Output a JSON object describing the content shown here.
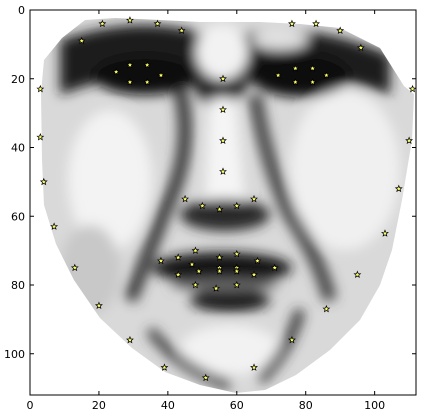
{
  "chart_data": {
    "type": "scatter",
    "title": "",
    "xlabel": "",
    "ylabel": "",
    "xlim": [
      0,
      112
    ],
    "ylim": [
      112,
      0
    ],
    "y_inverted": true,
    "grid": false,
    "legend": "none",
    "background": "grayscale face image",
    "x_ticks": [
      0,
      20,
      40,
      60,
      80,
      100
    ],
    "y_ticks": [
      0,
      20,
      40,
      60,
      80,
      100
    ],
    "x_tick_labels": [
      "0",
      "20",
      "40",
      "60",
      "80",
      "100"
    ],
    "y_tick_labels": [
      "0",
      "20",
      "40",
      "60",
      "80",
      "100"
    ],
    "marker": "star",
    "marker_color": "#ffff66",
    "series": [
      {
        "points": [
          [
            3,
            23
          ],
          [
            3,
            37
          ],
          [
            4,
            50
          ],
          [
            7,
            63
          ],
          [
            13,
            75
          ],
          [
            20,
            86
          ],
          [
            29,
            96
          ],
          [
            39,
            104
          ],
          [
            51,
            107
          ],
          [
            65,
            104
          ],
          [
            76,
            96
          ],
          [
            86,
            87
          ],
          [
            95,
            77
          ],
          [
            103,
            65
          ],
          [
            107,
            52
          ],
          [
            110,
            38
          ],
          [
            111,
            23
          ],
          [
            15,
            9
          ],
          [
            21,
            4
          ],
          [
            29,
            3
          ],
          [
            37,
            4
          ],
          [
            44,
            6
          ],
          [
            76,
            4
          ],
          [
            83,
            4
          ],
          [
            90,
            6
          ],
          [
            96,
            11
          ],
          [
            25,
            18
          ],
          [
            29,
            16
          ],
          [
            34,
            16
          ],
          [
            38,
            19
          ],
          [
            34,
            21
          ],
          [
            29,
            21
          ],
          [
            72,
            19
          ],
          [
            77,
            17
          ],
          [
            82,
            17
          ],
          [
            86,
            19
          ],
          [
            82,
            21
          ],
          [
            77,
            21
          ],
          [
            56,
            20
          ],
          [
            56,
            29
          ],
          [
            56,
            38
          ],
          [
            56,
            47
          ],
          [
            45,
            55
          ],
          [
            50,
            57
          ],
          [
            55,
            58
          ],
          [
            60,
            57
          ],
          [
            65,
            55
          ],
          [
            38,
            73
          ],
          [
            43,
            72
          ],
          [
            48,
            70
          ],
          [
            55,
            72
          ],
          [
            60,
            71
          ],
          [
            66,
            73
          ],
          [
            71,
            75
          ],
          [
            65,
            77
          ],
          [
            60,
            80
          ],
          [
            54,
            81
          ],
          [
            48,
            80
          ],
          [
            43,
            77
          ],
          [
            47,
            74
          ],
          [
            55,
            75
          ],
          [
            60,
            75
          ],
          [
            49,
            76
          ],
          [
            55,
            76
          ],
          [
            60,
            76
          ]
        ]
      }
    ]
  }
}
